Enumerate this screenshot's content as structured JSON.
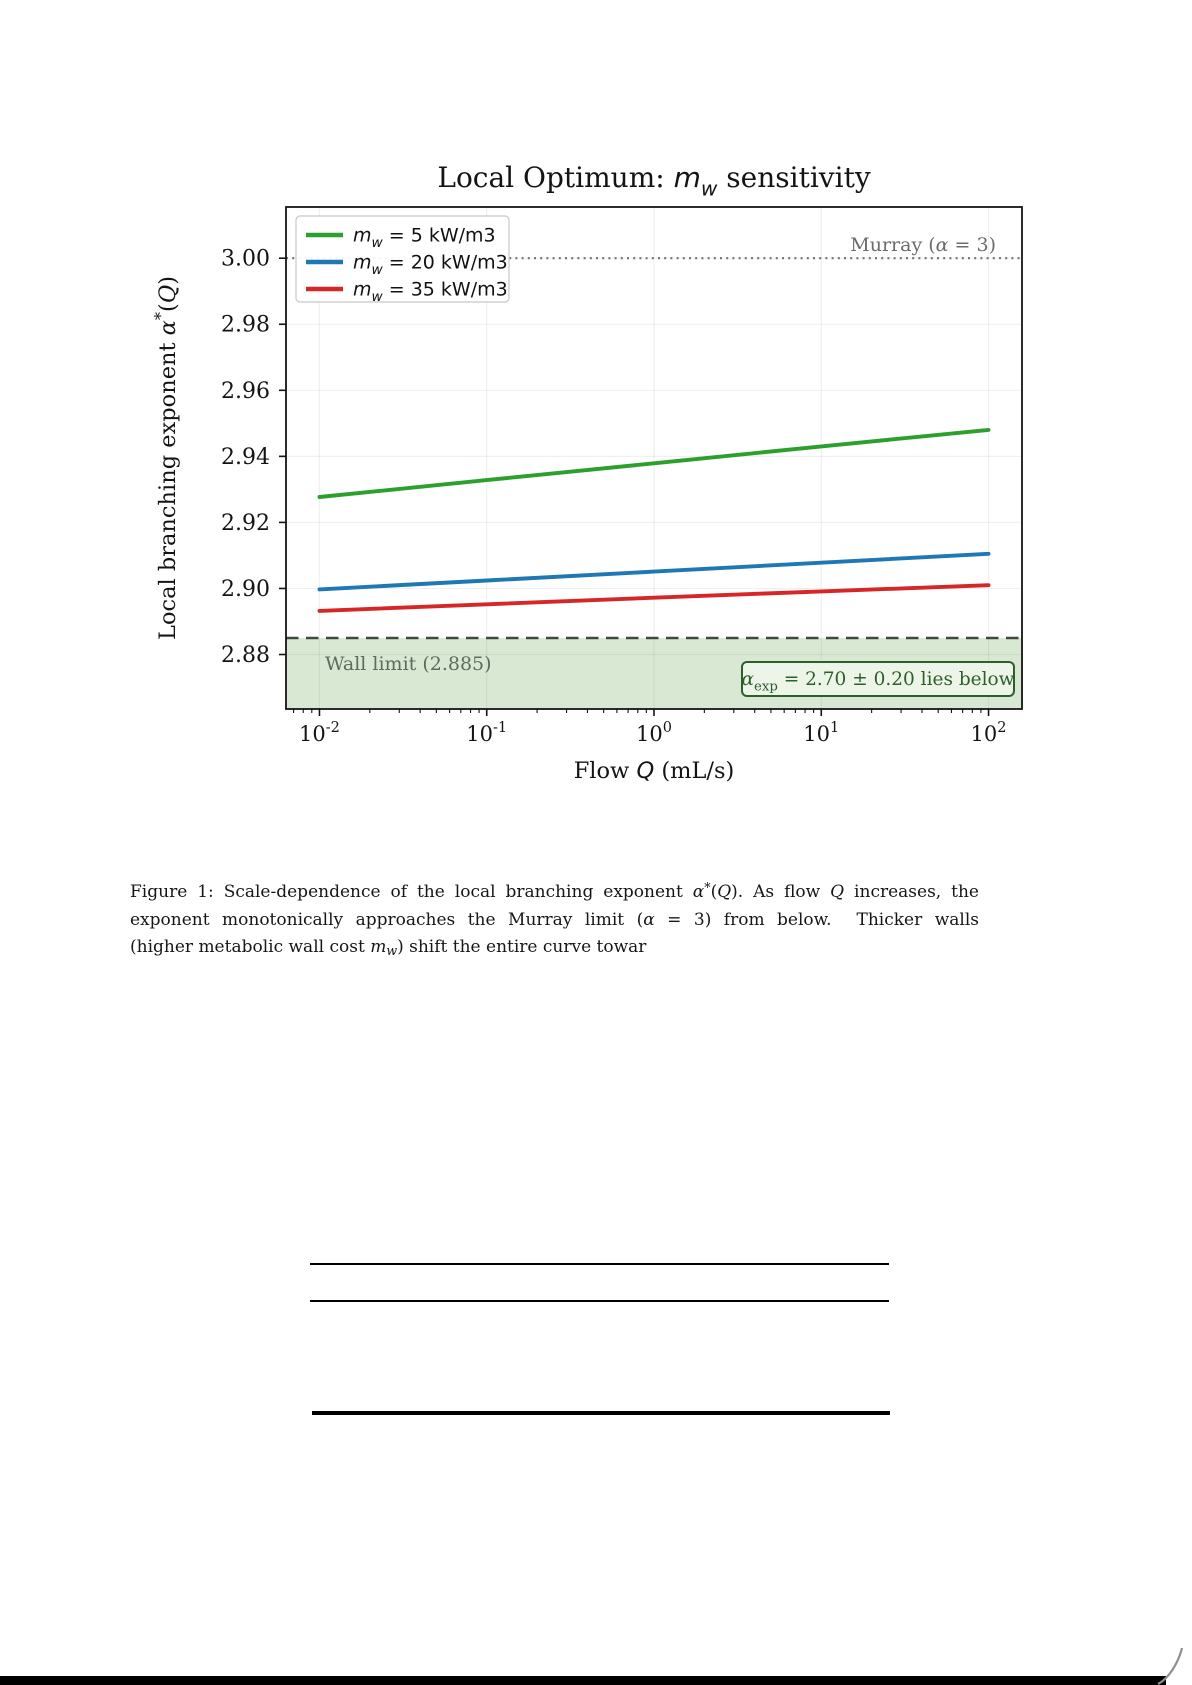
{
  "page": {
    "background": "#ffffff"
  },
  "chart_data": {
    "type": "line",
    "x_scale": "log",
    "title_segments": [
      {
        "t": "Local Optimum: "
      },
      {
        "t": "m",
        "i": 1,
        "sans": 1
      },
      {
        "t": "w",
        "i": 1,
        "sub": 1,
        "sans": 1
      },
      {
        "t": " sensitivity"
      }
    ],
    "xlabel_segments": [
      {
        "t": "Flow "
      },
      {
        "t": "Q",
        "i": 1,
        "sans": 1
      },
      {
        "t": " (mL/s)"
      }
    ],
    "ylabel_segments": [
      {
        "t": "Local branching exponent "
      },
      {
        "t": "α",
        "i": 1
      },
      {
        "t": "*",
        "sup": 1
      },
      {
        "t": "("
      },
      {
        "t": "Q",
        "i": 1
      },
      {
        "t": ")"
      }
    ],
    "xlim_log10": [
      -2.2,
      2.2
    ],
    "ylim": [
      2.8635,
      3.0155
    ],
    "x_tick_base": "10",
    "x_tick_exponents": [
      -2,
      -1,
      0,
      1,
      2
    ],
    "y_ticks": [
      3.0,
      2.98,
      2.96,
      2.94,
      2.92,
      2.9,
      2.88
    ],
    "grid": true,
    "series": [
      {
        "name": "mw = 5 kW/m3",
        "label_segments": [
          {
            "t": "m",
            "i": 1,
            "sans": 1
          },
          {
            "t": "w",
            "i": 1,
            "sub": 1,
            "sans": 1
          },
          {
            "t": " = 5 kW/m3",
            "sans": 1
          }
        ],
        "color": "#2ca02c",
        "x": [
          0.01,
          0.1,
          1,
          10,
          100
        ],
        "y": [
          2.9277,
          2.9328,
          2.9379,
          2.943,
          2.948
        ]
      },
      {
        "name": "mw = 20 kW/m3",
        "label_segments": [
          {
            "t": "m",
            "i": 1,
            "sans": 1
          },
          {
            "t": "w",
            "i": 1,
            "sub": 1,
            "sans": 1
          },
          {
            "t": " = 20 kW/m3",
            "sans": 1
          }
        ],
        "color": "#1f77b4",
        "x": [
          0.01,
          0.1,
          1,
          10,
          100
        ],
        "y": [
          2.8997,
          2.9024,
          2.9051,
          2.9078,
          2.9105
        ]
      },
      {
        "name": "mw = 35 kW/m3",
        "label_segments": [
          {
            "t": "m",
            "i": 1,
            "sans": 1
          },
          {
            "t": "w",
            "i": 1,
            "sub": 1,
            "sans": 1
          },
          {
            "t": " = 35 kW/m3",
            "sans": 1
          }
        ],
        "color": "#d62728",
        "x": [
          0.01,
          0.1,
          1,
          10,
          100
        ],
        "y": [
          2.8932,
          2.8952,
          2.8972,
          2.8991,
          2.901
        ]
      }
    ],
    "reference_lines": {
      "murray": {
        "value": 3.0,
        "label_segments": [
          {
            "t": "Murray ("
          },
          {
            "t": "α",
            "i": 1
          },
          {
            "t": " = 3)"
          }
        ],
        "style": "dotted",
        "color": "#707070",
        "label_color": "#6b6b6b"
      },
      "wall": {
        "value": 2.885,
        "label": "Wall limit (2.885)",
        "style": "dashed",
        "color": "#41483f",
        "band_fill": "#d9e8d3",
        "label_color": "#5e6a5e"
      }
    },
    "annotation_box": {
      "segments": [
        {
          "t": "α",
          "i": 1
        },
        {
          "t": "exp",
          "sub": 1
        },
        {
          "t": " = 2.70 ± 0.20 lies below"
        }
      ],
      "text_color": "#2d5f2d",
      "border_color": "#2d5f2d",
      "fill": "#edf5e8"
    },
    "legend_position": "upper-left"
  },
  "caption": {
    "lines": [
      [
        {
          "t": "Figure 1: Scale-dependence of the local branching exponent "
        },
        {
          "t": "α",
          "i": 1
        },
        {
          "t": "*",
          "sup": 1
        },
        {
          "t": "("
        },
        {
          "t": "Q",
          "i": 1
        },
        {
          "t": "). As flow "
        },
        {
          "t": "Q",
          "i": 1
        },
        {
          "t": " increases, the"
        }
      ],
      [
        {
          "t": "exponent monotonically approaches the Murray limit ("
        },
        {
          "t": "α",
          "i": 1
        },
        {
          "t": " = 3) from below.  Thicker walls"
        }
      ],
      [
        {
          "t": "(higher metabolic wall cost "
        },
        {
          "t": "m",
          "i": 1
        },
        {
          "t": "w",
          "i": 1,
          "sub": 1
        },
        {
          "t": ") shift the entire curve towar"
        }
      ]
    ]
  }
}
